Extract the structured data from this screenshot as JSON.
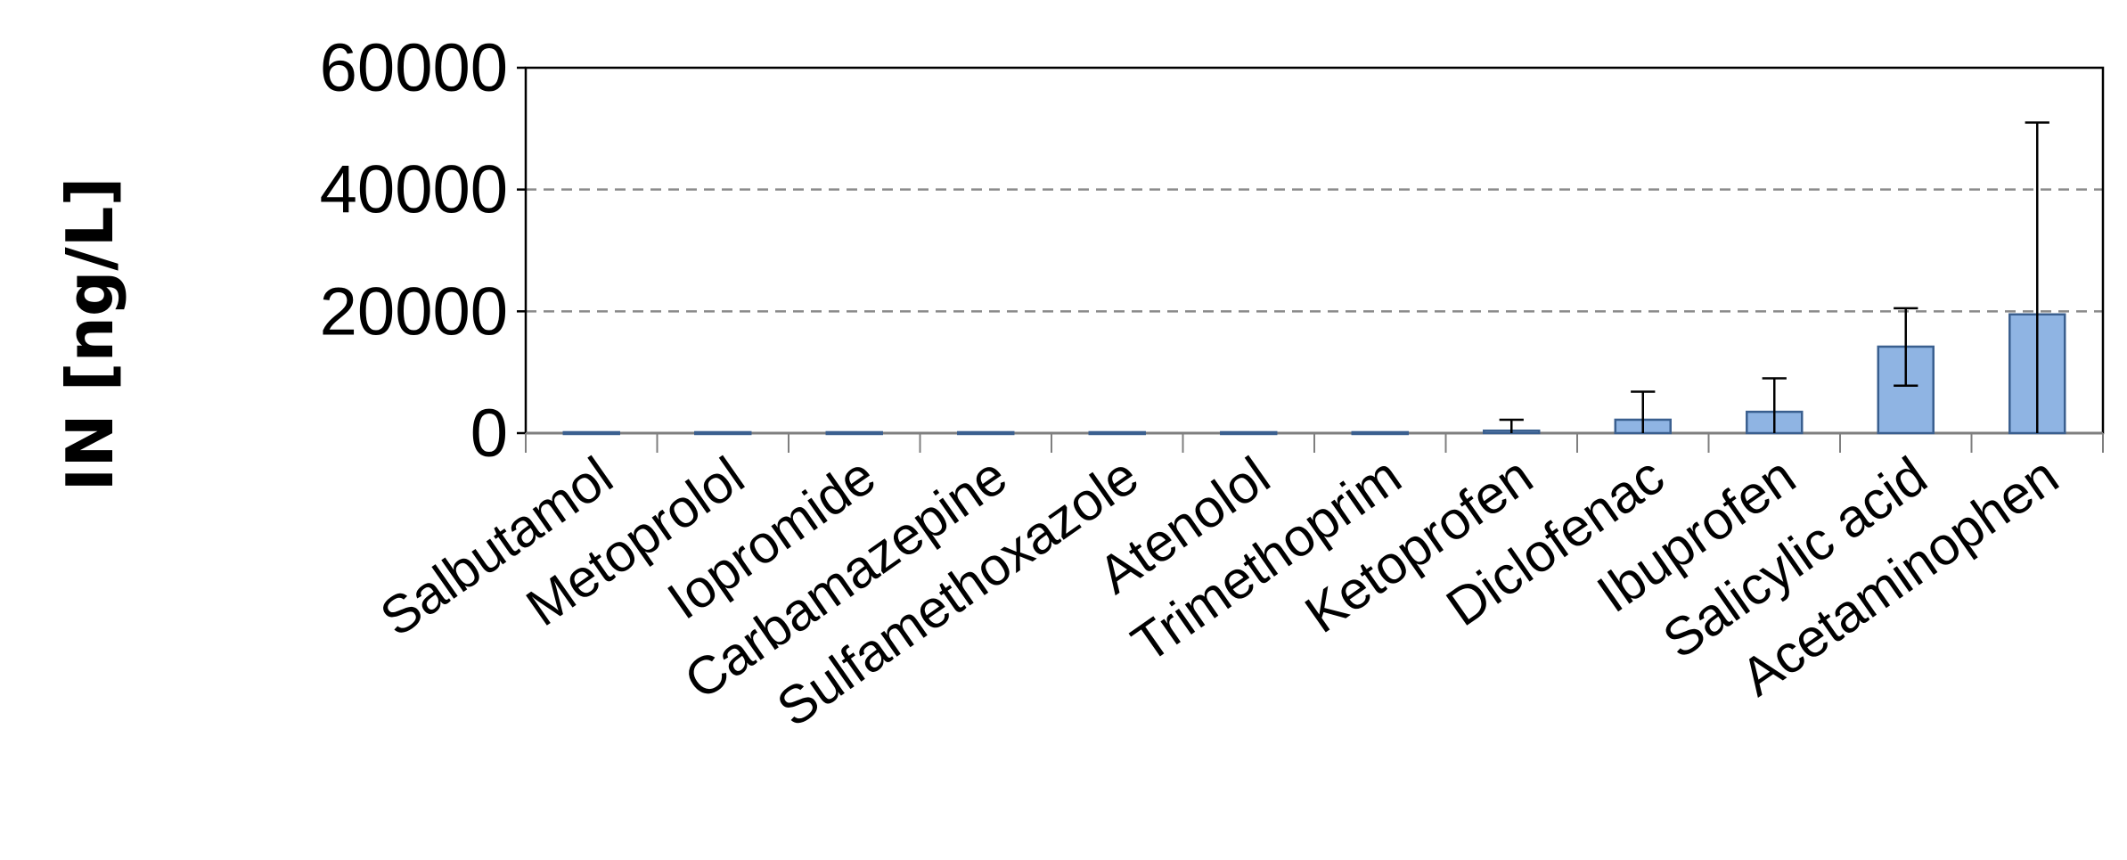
{
  "chart_data": {
    "type": "bar",
    "ylabel": "IN [ng/L]",
    "ylim": [
      0,
      60000
    ],
    "yticks": [
      "0",
      "20000",
      "40000",
      "60000"
    ],
    "grid": "horizontal dashed at 20000 and 40000",
    "categories": [
      "Salbutamol",
      "Metoprolol",
      "Iopromide",
      "Carbamazepine",
      "Sulfamethoxazole",
      "Atenolol",
      "Trimethoprim",
      "Ketoprofen",
      "Diclofenac",
      "Ibuprofen",
      "Salicylic acid",
      "Acetaminophen"
    ],
    "values": [
      150,
      150,
      150,
      150,
      150,
      150,
      150,
      400,
      2200,
      3500,
      14200,
      19500
    ],
    "error_upper": [
      null,
      null,
      null,
      null,
      null,
      null,
      null,
      2200,
      6800,
      9000,
      20500,
      51000
    ],
    "error_lower": [
      null,
      null,
      null,
      null,
      null,
      null,
      null,
      0,
      0,
      0,
      7800,
      0
    ],
    "bar_color": "#8fb4e3",
    "bar_edge_color": "#3a5f8f"
  }
}
